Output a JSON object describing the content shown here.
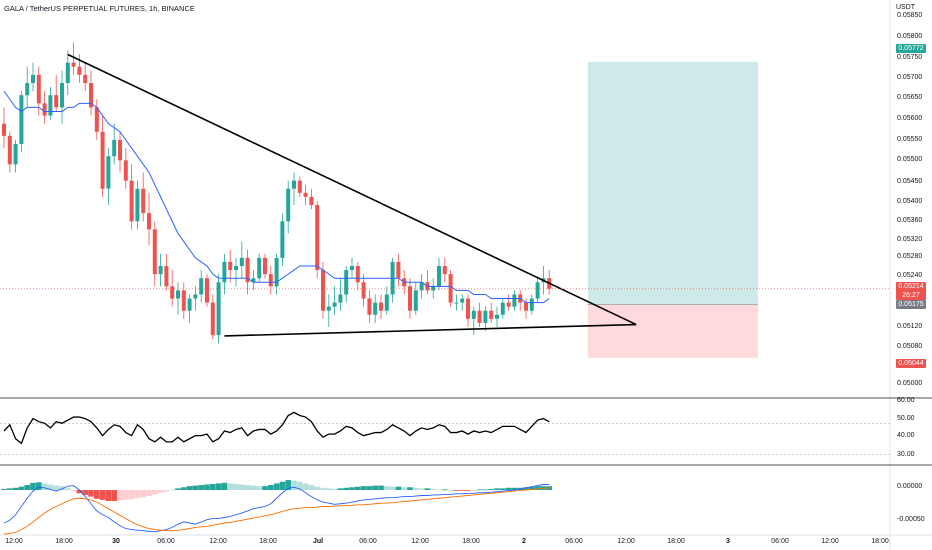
{
  "header": {
    "title": "GALA / TetherUS PERPETUAL FUTURES, 1h, BINANCE",
    "currency": "USDT"
  },
  "price_axis": {
    "labels": [
      "0.05850",
      "0.05800",
      "0.05750",
      "0.05700",
      "0.05650",
      "0.05600",
      "0.05550",
      "0.05500",
      "0.05450",
      "0.05400",
      "0.05360",
      "0.05320",
      "0.05280",
      "0.05240",
      "0.05120",
      "0.05080",
      "0.05040",
      "0.05000"
    ],
    "target_tag": "0.05772",
    "last_tag_price": "0.05214",
    "last_tag_countdown": "26:27",
    "entry_tag": "0.05175",
    "stop_tag": "0.05044"
  },
  "rsi_axis": {
    "labels": [
      "60.00",
      "50.00",
      "40.00",
      "30.00"
    ]
  },
  "macd_axis": {
    "labels": [
      "0.00000",
      "-0.00050"
    ]
  },
  "time_axis": {
    "labels": [
      "12:00",
      "18:00",
      "30",
      "06:00",
      "12:00",
      "18:00",
      "Jul",
      "06:00",
      "12:00",
      "18:00",
      "2",
      "06:00",
      "12:00",
      "18:00",
      "3",
      "06:00",
      "12:00",
      "18:00"
    ]
  },
  "colors": {
    "up": "#26a69a",
    "down": "#ef5350",
    "ma": "#2962ff",
    "target_zone": "#b2dfdb",
    "stop_zone": "#ffcdd2",
    "rsi": "#000000",
    "macd_line": "#2962ff",
    "signal_line": "#ff6d00"
  },
  "chart_data": {
    "type": "candlestick",
    "symbol": "GALA / TetherUS PERPETUAL FUTURES",
    "interval": "1h",
    "exchange": "BINANCE",
    "y_range": [
      0.0497,
      0.0587
    ],
    "candles": [
      [
        0.0562,
        0.0566,
        0.0556,
        0.0559
      ],
      [
        0.0559,
        0.056,
        0.055,
        0.0552
      ],
      [
        0.0552,
        0.0558,
        0.055,
        0.0557
      ],
      [
        0.0557,
        0.057,
        0.0555,
        0.0569
      ],
      [
        0.0569,
        0.0576,
        0.0566,
        0.0572
      ],
      [
        0.0572,
        0.0577,
        0.057,
        0.0574
      ],
      [
        0.0574,
        0.0576,
        0.0564,
        0.0567
      ],
      [
        0.0567,
        0.057,
        0.0562,
        0.0564
      ],
      [
        0.0564,
        0.0571,
        0.0563,
        0.0569
      ],
      [
        0.0569,
        0.0574,
        0.0565,
        0.0566
      ],
      [
        0.0566,
        0.0575,
        0.0562,
        0.0572
      ],
      [
        0.0572,
        0.058,
        0.0569,
        0.0577
      ],
      [
        0.0577,
        0.0582,
        0.0574,
        0.0576
      ],
      [
        0.0576,
        0.0579,
        0.0572,
        0.0574
      ],
      [
        0.0574,
        0.0577,
        0.057,
        0.0572
      ],
      [
        0.0572,
        0.0575,
        0.0564,
        0.0566
      ],
      [
        0.0566,
        0.0568,
        0.0558,
        0.056
      ],
      [
        0.056,
        0.0564,
        0.0544,
        0.0546
      ],
      [
        0.0546,
        0.0556,
        0.0542,
        0.0554
      ],
      [
        0.0554,
        0.0562,
        0.0552,
        0.0558
      ],
      [
        0.0558,
        0.056,
        0.055,
        0.0553
      ],
      [
        0.0553,
        0.0556,
        0.0546,
        0.0548
      ],
      [
        0.0548,
        0.0552,
        0.0536,
        0.0538
      ],
      [
        0.0538,
        0.0548,
        0.0536,
        0.0546
      ],
      [
        0.0546,
        0.055,
        0.0538,
        0.054
      ],
      [
        0.054,
        0.0545,
        0.0532,
        0.0536
      ],
      [
        0.0536,
        0.0538,
        0.0522,
        0.0525
      ],
      [
        0.0525,
        0.053,
        0.0522,
        0.0527
      ],
      [
        0.0527,
        0.053,
        0.0521,
        0.0522
      ],
      [
        0.0522,
        0.0526,
        0.0517,
        0.0519
      ],
      [
        0.0519,
        0.0523,
        0.0515,
        0.0521
      ],
      [
        0.0521,
        0.0523,
        0.0514,
        0.0516
      ],
      [
        0.0516,
        0.052,
        0.0513,
        0.0519
      ],
      [
        0.0519,
        0.0522,
        0.0516,
        0.052
      ],
      [
        0.052,
        0.0526,
        0.0518,
        0.0524
      ],
      [
        0.0524,
        0.0525,
        0.0517,
        0.0518
      ],
      [
        0.0518,
        0.052,
        0.0509,
        0.051
      ],
      [
        0.051,
        0.0525,
        0.0508,
        0.0523
      ],
      [
        0.0523,
        0.053,
        0.052,
        0.0528
      ],
      [
        0.0528,
        0.0531,
        0.0523,
        0.0526
      ],
      [
        0.0526,
        0.0529,
        0.0522,
        0.0527
      ],
      [
        0.0527,
        0.0533,
        0.0524,
        0.0529
      ],
      [
        0.0529,
        0.0531,
        0.052,
        0.0523
      ],
      [
        0.0523,
        0.0526,
        0.0521,
        0.0524
      ],
      [
        0.0524,
        0.053,
        0.0523,
        0.0529
      ],
      [
        0.0529,
        0.053,
        0.0524,
        0.0525
      ],
      [
        0.0525,
        0.0527,
        0.052,
        0.0522
      ],
      [
        0.0522,
        0.053,
        0.052,
        0.0529
      ],
      [
        0.0529,
        0.054,
        0.0527,
        0.0538
      ],
      [
        0.0538,
        0.0548,
        0.0535,
        0.0546
      ],
      [
        0.0546,
        0.055,
        0.0542,
        0.0548
      ],
      [
        0.0548,
        0.0549,
        0.0544,
        0.0545
      ],
      [
        0.0545,
        0.0547,
        0.0542,
        0.0544
      ],
      [
        0.0544,
        0.0546,
        0.0541,
        0.0542
      ],
      [
        0.0542,
        0.0543,
        0.0524,
        0.0526
      ],
      [
        0.0526,
        0.0528,
        0.0514,
        0.0516
      ],
      [
        0.0516,
        0.052,
        0.0512,
        0.0517
      ],
      [
        0.0517,
        0.0522,
        0.0515,
        0.0518
      ],
      [
        0.0518,
        0.0524,
        0.0516,
        0.052
      ],
      [
        0.052,
        0.0527,
        0.0518,
        0.0526
      ],
      [
        0.0526,
        0.0529,
        0.0524,
        0.0527
      ],
      [
        0.0527,
        0.0528,
        0.0521,
        0.0523
      ],
      [
        0.0523,
        0.0525,
        0.0517,
        0.0519
      ],
      [
        0.0519,
        0.0521,
        0.0513,
        0.0515
      ],
      [
        0.0515,
        0.052,
        0.0513,
        0.0518
      ],
      [
        0.0518,
        0.052,
        0.0514,
        0.0516
      ],
      [
        0.0516,
        0.0522,
        0.0515,
        0.052
      ],
      [
        0.052,
        0.0529,
        0.0518,
        0.0528
      ],
      [
        0.0528,
        0.053,
        0.0522,
        0.0524
      ],
      [
        0.0524,
        0.0526,
        0.052,
        0.0522
      ],
      [
        0.0522,
        0.0524,
        0.0514,
        0.0516
      ],
      [
        0.0516,
        0.0523,
        0.0515,
        0.0521
      ],
      [
        0.0521,
        0.0525,
        0.0519,
        0.0523
      ],
      [
        0.0523,
        0.0526,
        0.052,
        0.0521
      ],
      [
        0.0521,
        0.0524,
        0.0519,
        0.0522
      ],
      [
        0.0522,
        0.0529,
        0.0521,
        0.0527
      ],
      [
        0.0527,
        0.0529,
        0.0523,
        0.0525
      ],
      [
        0.0525,
        0.0526,
        0.0517,
        0.0518
      ],
      [
        0.0518,
        0.052,
        0.0516,
        0.0518
      ],
      [
        0.0518,
        0.052,
        0.0516,
        0.0519
      ],
      [
        0.0519,
        0.052,
        0.0512,
        0.0514
      ],
      [
        0.0514,
        0.0517,
        0.051,
        0.0516
      ],
      [
        0.0516,
        0.0518,
        0.0512,
        0.0513
      ],
      [
        0.0513,
        0.0517,
        0.0511,
        0.0516
      ],
      [
        0.0516,
        0.0518,
        0.0513,
        0.0514
      ],
      [
        0.0514,
        0.0517,
        0.0512,
        0.0515
      ],
      [
        0.0515,
        0.0519,
        0.0514,
        0.0518
      ],
      [
        0.0518,
        0.052,
        0.0516,
        0.0517
      ],
      [
        0.0517,
        0.0521,
        0.0516,
        0.052
      ],
      [
        0.052,
        0.0521,
        0.0516,
        0.0518
      ],
      [
        0.0518,
        0.0519,
        0.0514,
        0.0516
      ],
      [
        0.0516,
        0.052,
        0.0515,
        0.0519
      ],
      [
        0.0519,
        0.0524,
        0.0518,
        0.0523
      ],
      [
        0.0523,
        0.0527,
        0.052,
        0.0524
      ],
      [
        0.0524,
        0.0526,
        0.052,
        0.05214
      ]
    ],
    "ma_line": [
      0.057,
      0.0568,
      0.0566,
      0.0565,
      0.0566,
      0.0566,
      0.0566,
      0.0565,
      0.0565,
      0.0565,
      0.0565,
      0.0566,
      0.0566,
      0.0567,
      0.0567,
      0.0567,
      0.0566,
      0.0564,
      0.0562,
      0.0561,
      0.056,
      0.0558,
      0.0556,
      0.0554,
      0.0552,
      0.055,
      0.0547,
      0.0544,
      0.0541,
      0.0538,
      0.0535,
      0.0533,
      0.0531,
      0.0529,
      0.0528,
      0.0527,
      0.0525,
      0.0524,
      0.0524,
      0.0524,
      0.0524,
      0.0524,
      0.0524,
      0.0523,
      0.0523,
      0.0523,
      0.0523,
      0.0523,
      0.0524,
      0.0525,
      0.0526,
      0.0527,
      0.0527,
      0.0527,
      0.0527,
      0.0526,
      0.0525,
      0.0524,
      0.0524,
      0.0524,
      0.0524,
      0.0524,
      0.0524,
      0.0524,
      0.0524,
      0.0524,
      0.0524,
      0.0524,
      0.0524,
      0.0523,
      0.0523,
      0.0523,
      0.0523,
      0.0522,
      0.0522,
      0.0522,
      0.0522,
      0.0522,
      0.0521,
      0.0521,
      0.0521,
      0.052,
      0.052,
      0.052,
      0.0519,
      0.0519,
      0.0519,
      0.0519,
      0.0519,
      0.0519,
      0.0518,
      0.0518,
      0.0518,
      0.0518,
      0.0519
    ],
    "trendlines": [
      {
        "from": [
          11,
          0.0579
        ],
        "to": [
          109,
          0.05126
        ]
      },
      {
        "from": [
          38,
          0.05098
        ],
        "to": [
          109,
          0.05126
        ]
      }
    ],
    "position": {
      "type": "long",
      "entry": 0.05175,
      "target": 0.05772,
      "stop": 0.05044,
      "from_index": 101,
      "to_index": 130
    },
    "rsi": {
      "y_range": [
        25,
        65
      ],
      "levels": [
        30,
        50
      ],
      "values": [
        45,
        49,
        40,
        37,
        47,
        53,
        51,
        50,
        47,
        51,
        50,
        52,
        54,
        54,
        53,
        51,
        47,
        42,
        46,
        49,
        48,
        44,
        42,
        49,
        46,
        40,
        38,
        41,
        38,
        38,
        41,
        38,
        40,
        42,
        42,
        43,
        38,
        40,
        45,
        44,
        46,
        47,
        42,
        45,
        46,
        46,
        43,
        45,
        49,
        55,
        57,
        55,
        54,
        51,
        45,
        41,
        43,
        43,
        45,
        48,
        47,
        44,
        42,
        43,
        44,
        44,
        46,
        49,
        47,
        45,
        42,
        45,
        47,
        46,
        47,
        49,
        48,
        44,
        44,
        45,
        43,
        45,
        44,
        45,
        44,
        46,
        48,
        48,
        48,
        46,
        44,
        48,
        52,
        53,
        51
      ]
    },
    "macd": {
      "y_range": [
        -0.0008,
        0.0004
      ],
      "hist": [
        2e-05,
        3e-05,
        4e-05,
        6e-05,
        9e-05,
        0.00013,
        0.00014,
        0.00012,
        0.0001,
        8e-05,
        7e-05,
        3e-05,
        -2e-05,
        -6e-05,
        -9e-05,
        -0.00012,
        -0.00016,
        -0.00018,
        -0.0002,
        -0.0002,
        -0.00019,
        -0.00018,
        -0.00017,
        -0.00015,
        -0.00013,
        -0.00011,
        -8e-05,
        -5e-05,
        -3e-05,
        1e-05,
        3e-05,
        5e-05,
        7e-05,
        8e-05,
        9e-05,
        0.0001,
        0.00011,
        0.00012,
        0.00013,
        0.00012,
        0.00011,
        0.0001,
        9e-05,
        8e-05,
        7e-05,
        7e-05,
        9e-05,
        0.00012,
        0.00015,
        0.00018,
        0.00017,
        0.00015,
        0.00012,
        9e-05,
        6e-05,
        4e-05,
        3e-05,
        2e-05,
        3e-05,
        4e-05,
        5e-05,
        6e-05,
        7e-05,
        7e-05,
        8e-05,
        8e-05,
        7e-05,
        6e-05,
        6e-05,
        5e-05,
        5e-05,
        4e-05,
        3e-05,
        3e-05,
        2e-05,
        1e-05,
        1e-05,
        0.0,
        -1e-05,
        -1e-05,
        -1e-05,
        0.0,
        1e-05,
        1e-05,
        2e-05,
        3e-05,
        3e-05,
        4e-05,
        4e-05,
        4e-05,
        5e-05,
        6e-05,
        7e-05,
        7e-05,
        7e-05
      ],
      "macd_line": [
        -0.0006,
        -0.00055,
        -0.00045,
        -0.0003,
        -0.00015,
        -2e-05,
        5e-05,
        4e-05,
        1e-05,
        -2e-05,
        2e-05,
        7e-05,
        8e-05,
        0.0,
        -0.00012,
        -0.00025,
        -0.00038,
        -0.00045,
        -0.0005,
        -0.00058,
        -0.00065,
        -0.0007,
        -0.00072,
        -0.00073,
        -0.00074,
        -0.00075,
        -0.00076,
        -0.00074,
        -0.00072,
        -0.00068,
        -0.00062,
        -0.00058,
        -0.0006,
        -0.00062,
        -0.00058,
        -0.00054,
        -0.00052,
        -0.00052,
        -0.0005,
        -0.00048,
        -0.00045,
        -0.00042,
        -0.00038,
        -0.00034,
        -0.00032,
        -0.0003,
        -0.00025,
        -0.00015,
        -5e-05,
        3e-05,
        5e-05,
        2e-05,
        -5e-05,
        -0.00012,
        -0.00018,
        -0.00022,
        -0.00024,
        -0.00026,
        -0.00025,
        -0.00024,
        -0.00022,
        -0.0002,
        -0.00018,
        -0.00017,
        -0.00016,
        -0.00015,
        -0.00014,
        -0.00014,
        -0.00013,
        -0.00012,
        -0.00012,
        -0.00011,
        -0.0001,
        -0.0001,
        -9e-05,
        -9e-05,
        -8e-05,
        -8e-05,
        -7e-05,
        -7e-05,
        -6e-05,
        -6e-05,
        -5e-05,
        -5e-05,
        -4e-05,
        -3e-05,
        -2e-05,
        -1e-05,
        0.0,
        2e-05,
        4e-05,
        6e-05,
        8e-05,
        0.0001,
        0.0001
      ],
      "signal_line": [
        -0.0008,
        -0.00079,
        -0.00077,
        -0.00072,
        -0.00066,
        -0.00058,
        -0.0005,
        -0.00042,
        -0.00035,
        -0.0003,
        -0.00025,
        -0.0002,
        -0.00016,
        -0.00015,
        -0.00016,
        -0.00018,
        -0.00022,
        -0.00028,
        -0.00034,
        -0.0004,
        -0.00046,
        -0.00052,
        -0.00058,
        -0.00063,
        -0.00067,
        -0.0007,
        -0.00072,
        -0.00073,
        -0.00074,
        -0.00074,
        -0.00073,
        -0.00072,
        -0.0007,
        -0.00068,
        -0.00067,
        -0.00066,
        -0.00064,
        -0.00062,
        -0.0006,
        -0.00059,
        -0.00057,
        -0.00055,
        -0.00053,
        -0.00051,
        -0.00049,
        -0.00047,
        -0.00045,
        -0.00042,
        -0.00039,
        -0.00036,
        -0.00034,
        -0.00033,
        -0.00032,
        -0.00032,
        -0.00031,
        -0.0003,
        -0.0003,
        -0.00029,
        -0.00029,
        -0.00028,
        -0.00028,
        -0.00027,
        -0.00027,
        -0.00026,
        -0.00025,
        -0.00024,
        -0.00024,
        -0.00023,
        -0.00022,
        -0.00021,
        -0.0002,
        -0.00019,
        -0.00018,
        -0.00017,
        -0.00016,
        -0.00015,
        -0.00014,
        -0.00013,
        -0.00012,
        -0.00011,
        -0.0001,
        -9e-05,
        -8e-05,
        -7e-05,
        -6e-05,
        -5e-05,
        -4e-05,
        -3e-05,
        -2e-05,
        -1e-05,
        0.0,
        1e-05,
        2e-05,
        3e-05,
        4e-05
      ]
    }
  }
}
